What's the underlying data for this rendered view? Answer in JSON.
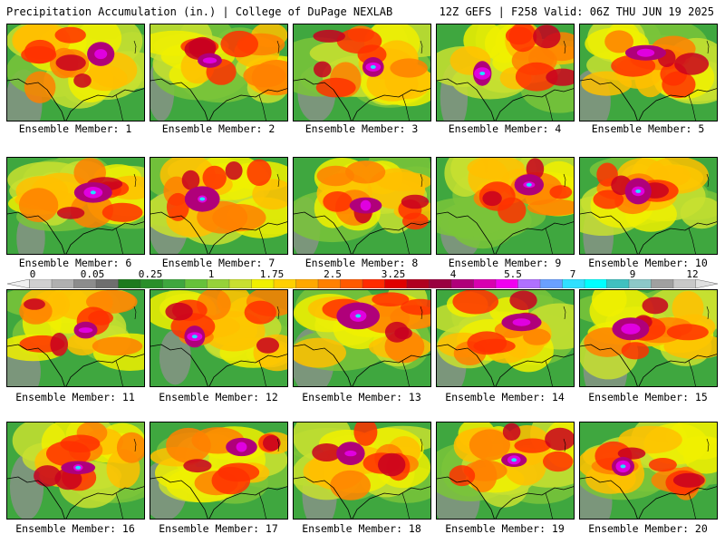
{
  "header": {
    "left": "Precipitation Accumulation (in.) | College of DuPage NEXLAB",
    "right": "12Z GEFS | F258 Valid: 06Z THU JUN 19 2025"
  },
  "panels": [
    {
      "label": "Ensemble Member: 1"
    },
    {
      "label": "Ensemble Member: 2"
    },
    {
      "label": "Ensemble Member: 3"
    },
    {
      "label": "Ensemble Member: 4"
    },
    {
      "label": "Ensemble Member: 5"
    },
    {
      "label": "Ensemble Member: 6"
    },
    {
      "label": "Ensemble Member: 7"
    },
    {
      "label": "Ensemble Member: 8"
    },
    {
      "label": "Ensemble Member: 9"
    },
    {
      "label": "Ensemble Member: 10"
    },
    {
      "label": "Ensemble Member: 11"
    },
    {
      "label": "Ensemble Member: 12"
    },
    {
      "label": "Ensemble Member: 13"
    },
    {
      "label": "Ensemble Member: 14"
    },
    {
      "label": "Ensemble Member: 15"
    },
    {
      "label": "Ensemble Member: 16"
    },
    {
      "label": "Ensemble Member: 17"
    },
    {
      "label": "Ensemble Member: 18"
    },
    {
      "label": "Ensemble Member: 19"
    },
    {
      "label": "Ensemble Member: 20"
    }
  ],
  "scale": {
    "labels": [
      "0",
      "0.05",
      "0.25",
      "1",
      "1.75",
      "2.5",
      "3.25",
      "4",
      "5.5",
      "7",
      "9",
      "12"
    ],
    "colors": [
      "#f0f0f0",
      "#d0d0d0",
      "#b0b0b0",
      "#8c8c8c",
      "#6e6e6e",
      "#1e7a1e",
      "#2a8f2a",
      "#3fa73f",
      "#66c23a",
      "#96d23a",
      "#c8e030",
      "#f0f000",
      "#ffd000",
      "#ffa800",
      "#ff8000",
      "#ff5a00",
      "#ff2a00",
      "#e00000",
      "#b00020",
      "#9a0040",
      "#b0007a",
      "#d800b0",
      "#f000f0",
      "#b070ff",
      "#6aa0ff",
      "#30e0ff",
      "#00ffff",
      "#40c0c0",
      "#8cc8c8",
      "#a0a0a0",
      "#c8c8c8",
      "#e0e0e0"
    ]
  },
  "map_palette": [
    "#1e7a1e",
    "#3fa73f",
    "#7ac43a",
    "#c8e030",
    "#f0f000",
    "#ffc000",
    "#ff8000",
    "#ff3000",
    "#c80020",
    "#b0007a",
    "#e000e0",
    "#20e0ff",
    "#909090"
  ]
}
